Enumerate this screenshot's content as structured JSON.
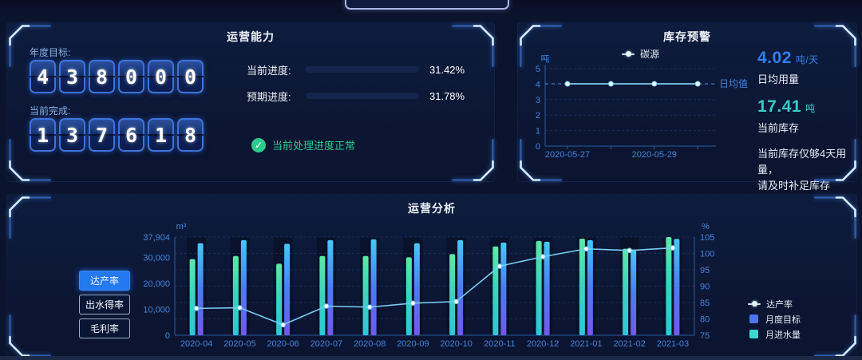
{
  "capability": {
    "title": "运营能力",
    "annual_target_label": "年度目标:",
    "annual_target": "438000",
    "current_label": "当前完成:",
    "current_value": "137618",
    "progress": [
      {
        "label": "当前进度:",
        "percent": 31.42,
        "percent_text": "31.42%",
        "color": "#2fd0bd"
      },
      {
        "label": "预期进度:",
        "percent": 31.78,
        "percent_text": "31.78%",
        "color": "#4067f0"
      }
    ],
    "status_text": "当前处理进度正常",
    "status_color": "#2ecb8e"
  },
  "inventory": {
    "title": "库存预警",
    "daily_usage_value": "4.02",
    "daily_usage_unit": "吨/天",
    "daily_usage_label": "日均用量",
    "stock_value": "17.41",
    "stock_unit": "吨",
    "stock_label": "当前库存",
    "warning_line1": "当前库存仅够4天用量，",
    "warning_line2": "请及时补足库存",
    "accent_blue": "#2f80f0",
    "accent_teal": "#33cfc6"
  },
  "analysis": {
    "title": "运营分析",
    "buttons": [
      {
        "label": "达产率",
        "active": true
      },
      {
        "label": "出水得率",
        "active": false
      },
      {
        "label": "毛利率",
        "active": false
      }
    ]
  },
  "chart_data": [
    {
      "id": "inventory-trend",
      "type": "line",
      "legend": [
        "碳源"
      ],
      "ylabel": "吨",
      "ylim": [
        0,
        5
      ],
      "yticks": [
        0,
        1,
        2,
        3,
        4,
        5
      ],
      "x_tick_labels": [
        "2020-05-27",
        "2020-05-29"
      ],
      "num_points": 4,
      "series": [
        {
          "name": "碳源",
          "values": [
            4.02,
            4.02,
            4.02,
            4.02
          ]
        }
      ],
      "markline": {
        "label": "日均值",
        "value": 4.02
      },
      "grid": true,
      "legend_position": "top",
      "line_color": "#79cdf0"
    },
    {
      "id": "operation-analysis",
      "type": "bar+line",
      "categories": [
        "2020-04",
        "2020-05",
        "2020-06",
        "2020-07",
        "2020-08",
        "2020-09",
        "2020-10",
        "2020-11",
        "2020-12",
        "2021-01",
        "2021-02",
        "2021-03"
      ],
      "series": [
        {
          "name": "月进水量",
          "kind": "bar",
          "axis": "left",
          "values": [
            29400,
            30600,
            27600,
            30600,
            30600,
            30100,
            31300,
            34300,
            36400,
            37300,
            33400,
            37904
          ],
          "color_top": "#5ce9a4",
          "color_mid": "#3ad3c0",
          "color_bottom": "#2fc6d8"
        },
        {
          "name": "月度目标",
          "kind": "bar",
          "axis": "left",
          "values": [
            35500,
            36700,
            35300,
            36700,
            37000,
            35500,
            36700,
            35800,
            36100,
            36700,
            33100,
            37200
          ],
          "color_top": "#45c8fa",
          "color_mid": "#4a7df2",
          "color_bottom": "#7158ee"
        },
        {
          "name": "达产率",
          "kind": "line",
          "axis": "right",
          "values": [
            83.2,
            83.4,
            78.2,
            83.9,
            83.6,
            84.8,
            85.3,
            96.1,
            99.0,
            101.4,
            100.9,
            101.7
          ],
          "color": "#79cdf0"
        }
      ],
      "left_axis": {
        "label": "m³",
        "ticks": [
          0,
          10000,
          20000,
          30000,
          37904
        ],
        "tick_labels": [
          "0",
          "10,000",
          "20,000",
          "30,000",
          "37,904"
        ],
        "max": 37904
      },
      "right_axis": {
        "label": "%",
        "ticks": [
          75,
          80,
          85,
          90,
          95,
          100,
          105
        ],
        "min": 75,
        "max": 105
      },
      "legend": [
        {
          "name": "达产率",
          "marker": "line-dot",
          "color": "#79cdf0"
        },
        {
          "name": "月度目标",
          "marker": "square",
          "color": "#4e74f0"
        },
        {
          "name": "月进水量",
          "marker": "square",
          "color": "#38d8d0"
        }
      ],
      "legend_position": "right",
      "grid": true
    }
  ]
}
